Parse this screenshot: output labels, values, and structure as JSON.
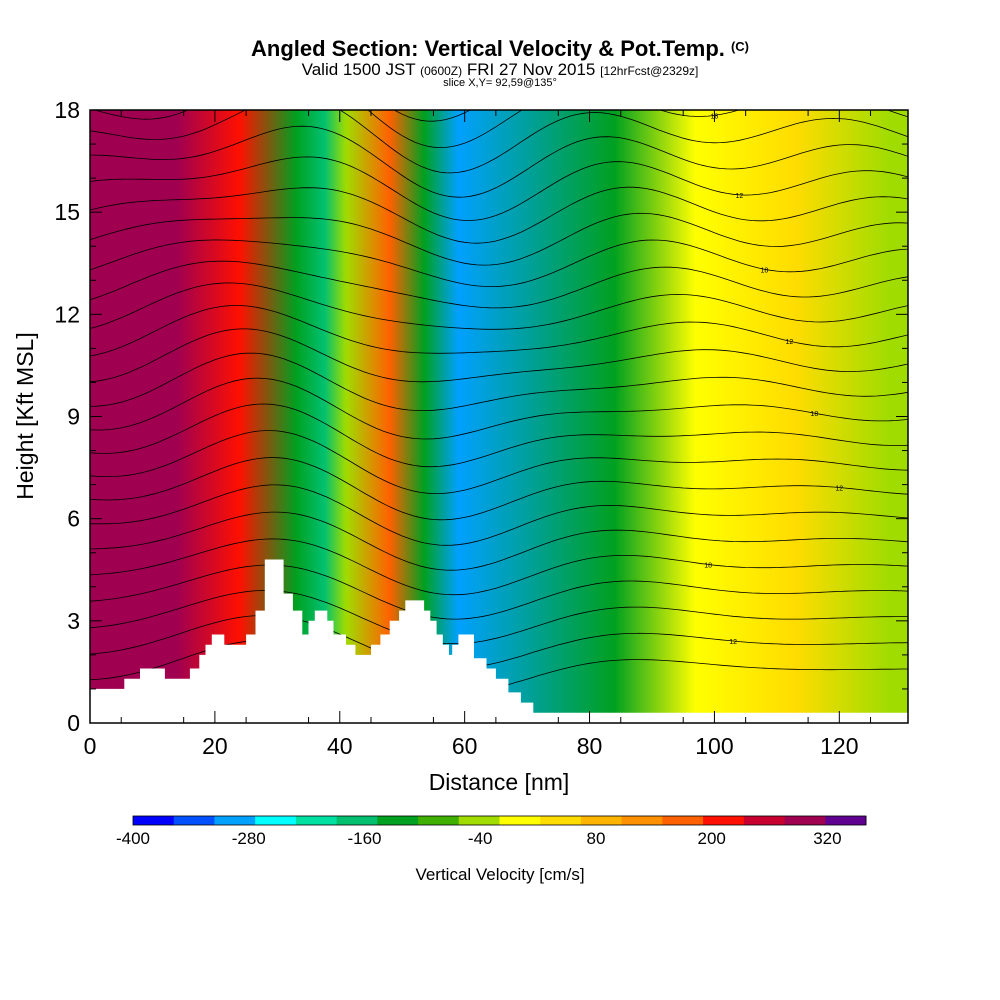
{
  "header": {
    "title": "Angled Section: Vertical Velocity & Pot.Temp.",
    "title_unit": "(C)",
    "valid_prefix": "Valid 1500 JST",
    "valid_utc": "(0600Z)",
    "valid_date": "FRI 27 Nov 2015",
    "forecast_info": "[12hrFcst@2329z]",
    "slice_info": "slice X,Y= 92,59@135°"
  },
  "chart_data": {
    "type": "heatmap",
    "xlabel": "Distance [nm]",
    "ylabel": "Height [Kft MSL]",
    "xlim": [
      0,
      131
    ],
    "ylim": [
      0,
      18
    ],
    "x_ticks": [
      0,
      20,
      40,
      60,
      80,
      100,
      120
    ],
    "y_ticks": [
      0,
      3,
      6,
      9,
      12,
      15,
      18
    ],
    "colorbar": {
      "label": "Vertical Velocity [cm/s]",
      "min": -400,
      "max": 360,
      "step": 40,
      "tick_values": [
        -400,
        -280,
        -160,
        -40,
        80,
        200,
        320
      ],
      "colors": [
        "#0000ff",
        "#0050ff",
        "#00a0ff",
        "#00ffff",
        "#00e0a0",
        "#00c070",
        "#00a020",
        "#40b000",
        "#a0dc00",
        "#ffff00",
        "#ffdc00",
        "#ffb400",
        "#ff9000",
        "#ff6000",
        "#ff1000",
        "#c80030",
        "#a00050",
        "#600090"
      ]
    },
    "velocity_bands": [
      {
        "x": 14,
        "cm_s": 260
      },
      {
        "x": 24,
        "cm_s": 180
      },
      {
        "x": 33,
        "cm_s": -160
      },
      {
        "x": 37.5,
        "cm_s": -200
      },
      {
        "x": 41,
        "cm_s": -80
      },
      {
        "x": 48,
        "cm_s": 140
      },
      {
        "x": 53.5,
        "cm_s": -150
      },
      {
        "x": 59,
        "cm_s": -320
      },
      {
        "x": 84,
        "cm_s": -150
      },
      {
        "x": 97,
        "cm_s": -40
      },
      {
        "x": 113,
        "cm_s": 20
      },
      {
        "x": 128,
        "cm_s": -50
      }
    ],
    "theta_contour_labels": [
      "10",
      "12",
      "14",
      "16",
      "18",
      "20"
    ],
    "terrain_profile": [
      [
        0,
        1.0
      ],
      [
        5.5,
        1.0
      ],
      [
        5.5,
        1.3
      ],
      [
        8,
        1.3
      ],
      [
        8,
        1.6
      ],
      [
        12,
        1.6
      ],
      [
        12,
        1.3
      ],
      [
        16,
        1.3
      ],
      [
        16,
        1.6
      ],
      [
        17.5,
        1.6
      ],
      [
        17.5,
        2.0
      ],
      [
        18.5,
        2.0
      ],
      [
        18.5,
        2.3
      ],
      [
        19.5,
        2.3
      ],
      [
        19.5,
        2.6
      ],
      [
        21.5,
        2.6
      ],
      [
        21.5,
        2.3
      ],
      [
        25,
        2.3
      ],
      [
        25,
        2.6
      ],
      [
        26.5,
        2.6
      ],
      [
        26.5,
        3.3
      ],
      [
        28,
        3.3
      ],
      [
        28,
        4.8
      ],
      [
        31,
        4.8
      ],
      [
        31,
        3.8
      ],
      [
        32.5,
        3.8
      ],
      [
        32.5,
        3.3
      ],
      [
        34,
        3.3
      ],
      [
        34,
        2.6
      ],
      [
        35,
        2.6
      ],
      [
        35,
        3.0
      ],
      [
        36,
        3.0
      ],
      [
        36,
        3.3
      ],
      [
        38,
        3.3
      ],
      [
        38,
        3.0
      ],
      [
        39,
        3.0
      ],
      [
        39,
        2.6
      ],
      [
        41,
        2.6
      ],
      [
        41,
        2.3
      ],
      [
        42.5,
        2.3
      ],
      [
        42.5,
        2.0
      ],
      [
        45,
        2.0
      ],
      [
        45,
        2.3
      ],
      [
        46.5,
        2.3
      ],
      [
        46.5,
        2.6
      ],
      [
        48,
        2.6
      ],
      [
        48,
        3.0
      ],
      [
        49.5,
        3.0
      ],
      [
        49.5,
        3.3
      ],
      [
        50.5,
        3.3
      ],
      [
        50.5,
        3.6
      ],
      [
        53.5,
        3.6
      ],
      [
        53.5,
        3.3
      ],
      [
        54.5,
        3.3
      ],
      [
        54.5,
        3.0
      ],
      [
        55.5,
        3.0
      ],
      [
        55.5,
        2.6
      ],
      [
        56.5,
        2.6
      ],
      [
        56.5,
        2.3
      ],
      [
        57.5,
        2.3
      ],
      [
        57.5,
        2.0
      ],
      [
        58,
        2.0
      ],
      [
        58,
        2.3
      ],
      [
        59,
        2.3
      ],
      [
        59,
        2.6
      ],
      [
        61.5,
        2.6
      ],
      [
        61.5,
        1.9
      ],
      [
        63.5,
        1.9
      ],
      [
        63.5,
        1.6
      ],
      [
        65,
        1.6
      ],
      [
        65,
        1.3
      ],
      [
        67,
        1.3
      ],
      [
        67,
        0.9
      ],
      [
        69,
        0.9
      ],
      [
        69,
        0.6
      ],
      [
        71,
        0.6
      ],
      [
        71,
        0.3
      ],
      [
        131,
        0.3
      ]
    ]
  }
}
